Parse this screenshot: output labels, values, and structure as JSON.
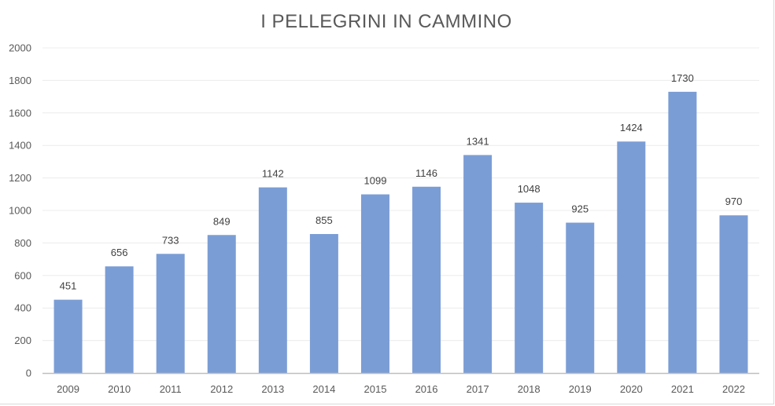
{
  "chart_data": {
    "type": "bar",
    "title": "I PELLEGRINI IN CAMMINO",
    "xlabel": "",
    "ylabel": "",
    "categories": [
      "2009",
      "2010",
      "2011",
      "2012",
      "2013",
      "2014",
      "2015",
      "2016",
      "2017",
      "2018",
      "2019",
      "2020",
      "2021",
      "2022"
    ],
    "values": [
      451,
      656,
      733,
      849,
      1142,
      855,
      1099,
      1146,
      1341,
      1048,
      925,
      1424,
      1730,
      970
    ],
    "ylim": [
      0,
      2000
    ],
    "yticks": [
      0,
      200,
      400,
      600,
      800,
      1000,
      1200,
      1400,
      1600,
      1800,
      2000
    ],
    "grid": true,
    "data_labels": true,
    "bar_color": "#7b9dd5",
    "legend": "none"
  }
}
